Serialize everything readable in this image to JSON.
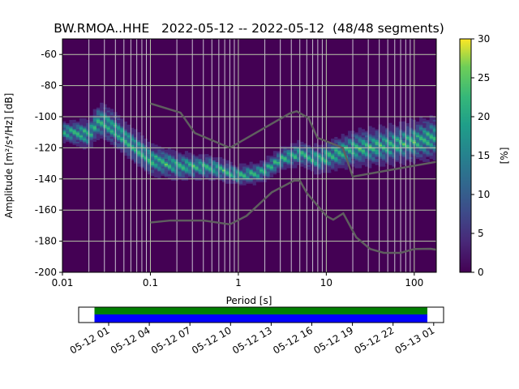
{
  "chart_data": {
    "type": "heatmap",
    "title": "BW.RMOA..HHE   2022-05-12 -- 2022-05-12  (48/48 segments)",
    "xlabel": "Period [s]",
    "ylabel": "Amplitude [m²/s⁴/Hz] [dB]",
    "xscale": "log",
    "xlim": [
      0.01,
      178
    ],
    "ylim": [
      -200,
      -50
    ],
    "xticks": [
      {
        "v": 0.01,
        "l": "0.01"
      },
      {
        "v": 0.1,
        "l": "0.1"
      },
      {
        "v": 1,
        "l": "1"
      },
      {
        "v": 10,
        "l": "10"
      },
      {
        "v": 100,
        "l": "100"
      }
    ],
    "yticks": [
      -60,
      -80,
      -100,
      -120,
      -140,
      -160,
      -180,
      -200
    ],
    "grid": true,
    "colorbar": {
      "label": "[%]",
      "range": [
        0,
        30
      ],
      "ticks": [
        0,
        5,
        10,
        15,
        20,
        25,
        30
      ]
    },
    "mode_curve": [
      [
        0.01,
        -110
      ],
      [
        0.015,
        -111
      ],
      [
        0.02,
        -112
      ],
      [
        0.025,
        -104
      ],
      [
        0.03,
        -104
      ],
      [
        0.04,
        -109
      ],
      [
        0.06,
        -118
      ],
      [
        0.1,
        -128
      ],
      [
        0.2,
        -132
      ],
      [
        0.5,
        -133
      ],
      [
        1,
        -138
      ],
      [
        1.6,
        -137
      ],
      [
        2,
        -135
      ],
      [
        3,
        -128
      ],
      [
        5,
        -124
      ],
      [
        8,
        -128
      ],
      [
        12,
        -125
      ],
      [
        20,
        -121
      ],
      [
        50,
        -119
      ],
      [
        100,
        -116
      ],
      [
        178,
        -114
      ]
    ],
    "spread_db": [
      [
        0.01,
        5
      ],
      [
        0.03,
        9
      ],
      [
        0.1,
        8
      ],
      [
        1,
        5
      ],
      [
        5,
        6
      ],
      [
        20,
        9
      ],
      [
        178,
        11
      ]
    ],
    "nhnm": [
      [
        0.1,
        -91.5
      ],
      [
        0.22,
        -97.4
      ],
      [
        0.32,
        -110.5
      ],
      [
        0.8,
        -120
      ],
      [
        3.8,
        -98
      ],
      [
        4.6,
        -96.5
      ],
      [
        6.3,
        -101
      ],
      [
        7.9,
        -113.5
      ],
      [
        15.4,
        -120
      ],
      [
        20,
        -138.5
      ],
      [
        178,
        -129
      ]
    ],
    "nlnm": [
      [
        0.1,
        -168
      ],
      [
        0.17,
        -166.7
      ],
      [
        0.4,
        -166.7
      ],
      [
        0.8,
        -169.2
      ],
      [
        1.24,
        -163.7
      ],
      [
        2.4,
        -148.6
      ],
      [
        4.3,
        -141.1
      ],
      [
        5,
        -141.1
      ],
      [
        6,
        -149
      ],
      [
        10,
        -163.8
      ],
      [
        12,
        -166.2
      ],
      [
        15.6,
        -162.1
      ],
      [
        21.9,
        -177.5
      ],
      [
        31.6,
        -185
      ],
      [
        45,
        -187.5
      ],
      [
        70,
        -187.5
      ],
      [
        101,
        -185
      ],
      [
        154,
        -184.9
      ],
      [
        178,
        -185.5
      ]
    ]
  },
  "timeline": {
    "ticks": [
      "05-12 01",
      "05-12 04",
      "05-12 07",
      "05-12 10",
      "05-12 13",
      "05-12 16",
      "05-12 19",
      "05-12 22",
      "05-13 01"
    ],
    "coverage": "48/48 segments",
    "colors": {
      "data": "#008000",
      "used": "#0000ff"
    }
  }
}
